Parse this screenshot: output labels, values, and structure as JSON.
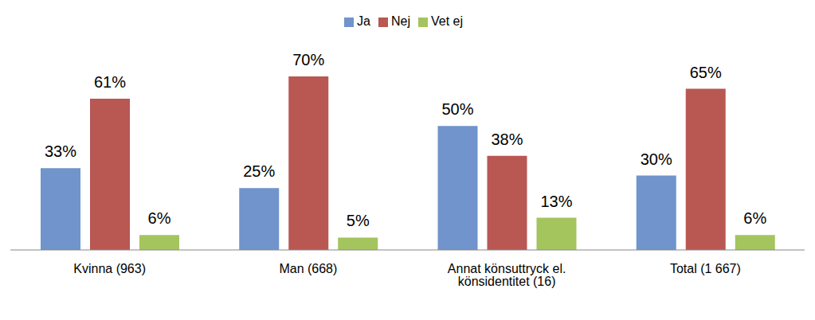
{
  "chart_data": {
    "type": "bar",
    "categories": [
      "Kvinna (963)",
      "Man (668)",
      "Annat könsuttryck el. könsidentitet (16)",
      "Total (1 667)"
    ],
    "series": [
      {
        "name": "Ja",
        "color": "#7094CB",
        "values": [
          33,
          25,
          50,
          30
        ],
        "value_labels": [
          "33%",
          "25%",
          "50%",
          "30%"
        ]
      },
      {
        "name": "Nej",
        "color": "#B95753",
        "values": [
          61,
          70,
          38,
          65
        ],
        "value_labels": [
          "61%",
          "70%",
          "38%",
          "65%"
        ]
      },
      {
        "name": "Vet ej",
        "color": "#A4C45E",
        "values": [
          6,
          5,
          13,
          6
        ],
        "value_labels": [
          "6%",
          "5%",
          "13%",
          "6%"
        ]
      }
    ],
    "data_labels": true,
    "legend": "top",
    "tick_labels": "x",
    "grid": false
  }
}
